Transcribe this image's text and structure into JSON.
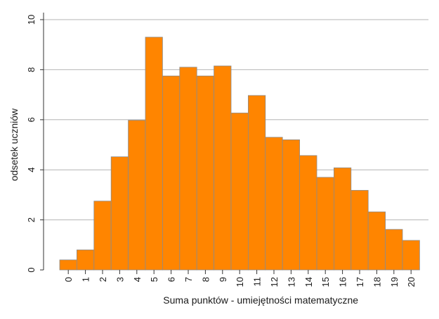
{
  "chart_data": {
    "type": "bar",
    "xlabel": "Suma punktów - umiejętności matematyczne",
    "ylabel": "odsetek uczniów",
    "categories": [
      "0",
      "1",
      "2",
      "3",
      "4",
      "5",
      "6",
      "7",
      "8",
      "9",
      "10",
      "11",
      "12",
      "13",
      "14",
      "15",
      "16",
      "17",
      "18",
      "19",
      "20"
    ],
    "values": [
      0.4,
      0.8,
      2.75,
      4.52,
      5.98,
      9.3,
      7.75,
      8.1,
      7.75,
      8.15,
      6.27,
      6.97,
      5.3,
      5.2,
      4.57,
      3.7,
      4.08,
      3.18,
      2.32,
      1.62,
      1.18
    ],
    "yticks": [
      "0",
      "2",
      "4",
      "6",
      "8",
      "10"
    ],
    "ylim": [
      0,
      10
    ],
    "grid": true,
    "bar_color": "#ff8500",
    "bar_edge_color": "#8c8c8c",
    "grid_color": "#b4b4b4"
  }
}
